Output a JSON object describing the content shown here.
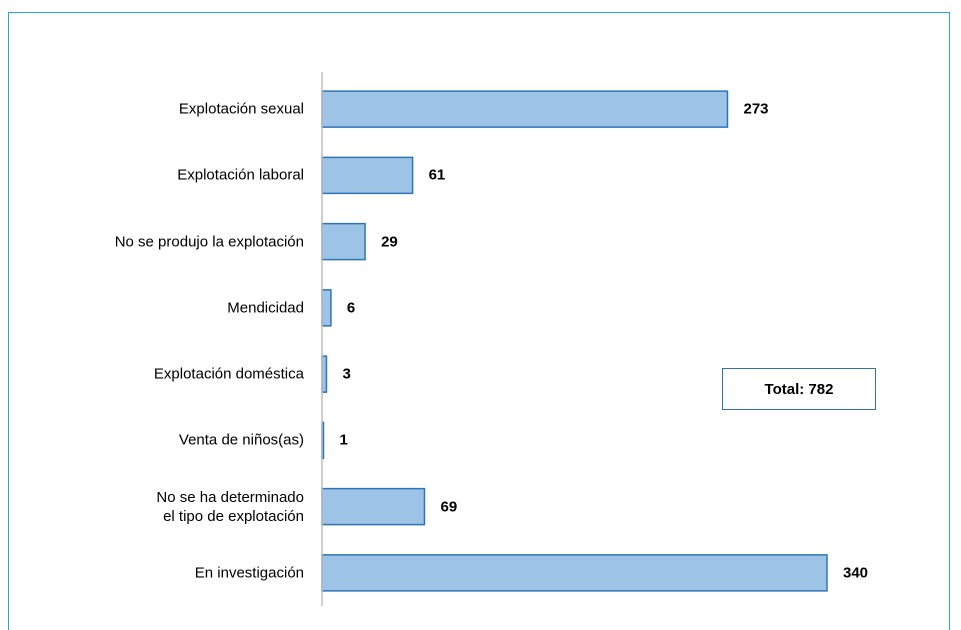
{
  "chart_data": {
    "type": "bar",
    "orientation": "horizontal",
    "categories": [
      "Explotación sexual",
      "Explotación laboral",
      "No se produjo la explotación",
      "Mendicidad",
      "Explotación doméstica",
      "Venta de niños(as)",
      "No se ha determinado\nel tipo de explotación",
      "En investigación"
    ],
    "values": [
      273,
      61,
      29,
      6,
      3,
      1,
      69,
      340
    ],
    "color": "#9dc3e6",
    "edge_color": "#2e75b6",
    "annotation": "Total: 782"
  }
}
